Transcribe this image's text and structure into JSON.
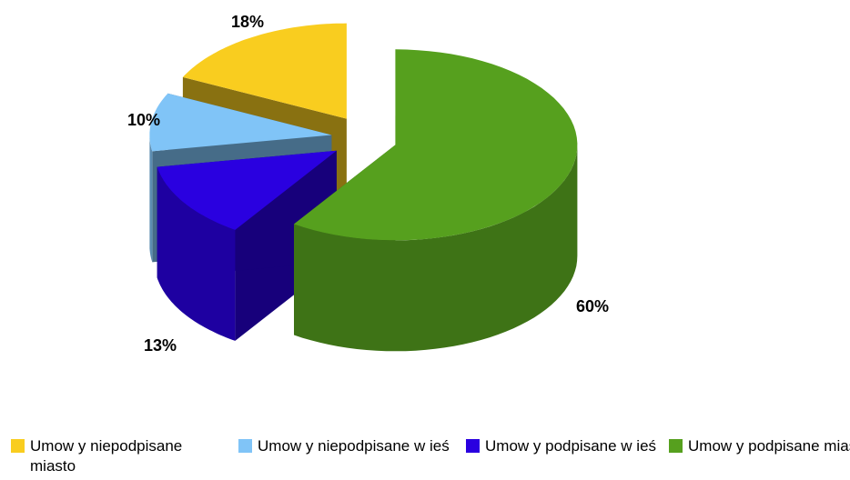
{
  "chart_data": {
    "type": "pie",
    "categories": [
      "Umow y niepodpisane miasto",
      "Umow y niepodpisane w ieś",
      "Umow y podpisane w ieś",
      "Umow y podpisane miasto"
    ],
    "values": [
      18,
      10,
      13,
      60
    ],
    "value_labels": [
      "18%",
      "10%",
      "13%",
      "60%"
    ],
    "colors": [
      "#f9cd1f",
      "#80c4f7",
      "#2a00e0",
      "#56a01e"
    ]
  }
}
